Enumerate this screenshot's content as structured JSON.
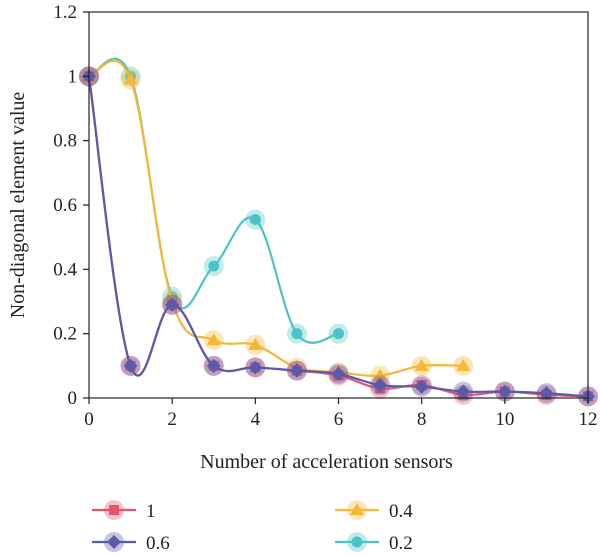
{
  "chart_data": {
    "type": "line",
    "xlabel": "Number of acceleration sensors",
    "ylabel": "Non-diagonal element value",
    "xlim": [
      0,
      12
    ],
    "ylim": [
      0,
      1.2
    ],
    "x_ticks": [
      "0",
      "2",
      "4",
      "6",
      "8",
      "10",
      "12"
    ],
    "y_ticks": [
      "0",
      "0.2",
      "0.4",
      "0.6",
      "0.8",
      "1",
      "1.2"
    ],
    "grid": false,
    "legend_position": "bottom",
    "series": [
      {
        "name": "1",
        "color": "#e8546a",
        "marker": "square",
        "x": [
          0,
          1,
          2,
          3,
          4,
          5,
          6,
          7,
          8,
          9,
          10,
          11,
          12
        ],
        "y": [
          1.0,
          0.1,
          0.29,
          0.1,
          0.095,
          0.085,
          0.07,
          0.03,
          0.04,
          0.01,
          0.02,
          0.01,
          0.005
        ]
      },
      {
        "name": "0.6",
        "color": "#5a5aa8",
        "marker": "diamond",
        "x": [
          0,
          1,
          2,
          3,
          4,
          5,
          6,
          7,
          8,
          9,
          10,
          11,
          12
        ],
        "y": [
          1.0,
          0.1,
          0.29,
          0.1,
          0.095,
          0.085,
          0.075,
          0.04,
          0.035,
          0.02,
          0.02,
          0.015,
          0.005
        ]
      },
      {
        "name": "0.4",
        "color": "#f5b735",
        "marker": "triangle",
        "x": [
          0,
          1,
          2,
          3,
          4,
          5,
          6,
          7,
          8,
          9
        ],
        "y": [
          1.0,
          0.99,
          0.3,
          0.18,
          0.165,
          0.095,
          0.08,
          0.07,
          0.1,
          0.1
        ]
      },
      {
        "name": "0.2",
        "color": "#4cc4c6",
        "marker": "circle",
        "x": [
          0,
          1,
          2,
          3,
          4,
          5,
          6
        ],
        "y": [
          1.0,
          1.0,
          0.315,
          0.41,
          0.555,
          0.2,
          0.2
        ]
      }
    ]
  }
}
